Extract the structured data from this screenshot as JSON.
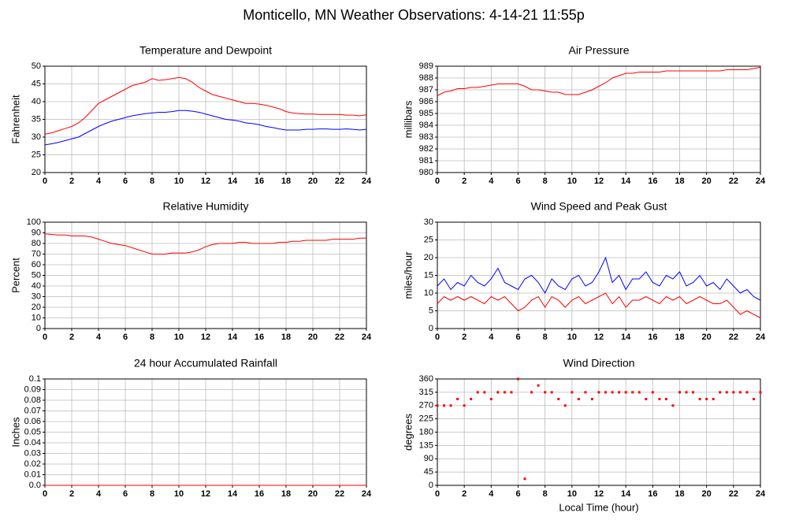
{
  "title": "Monticello, MN Weather Observations: 4-14-21 11:55p",
  "chart_data": [
    {
      "type": "line",
      "title": "Temperature and Dewpoint",
      "ylabel": "Fahrenheit",
      "x": [
        0,
        0.5,
        1,
        1.5,
        2,
        2.5,
        3,
        3.5,
        4,
        4.5,
        5,
        5.5,
        6,
        6.5,
        7,
        7.5,
        8,
        8.5,
        9,
        9.5,
        10,
        10.5,
        11,
        11.5,
        12,
        12.5,
        13,
        13.5,
        14,
        14.5,
        15,
        15.5,
        16,
        16.5,
        17,
        17.5,
        18,
        18.5,
        19,
        19.5,
        20,
        20.5,
        21,
        21.5,
        22,
        22.5,
        23,
        23.5,
        24
      ],
      "series": [
        {
          "color": "#ff0000",
          "values": [
            30.8,
            31.2,
            31.8,
            32.4,
            33,
            34,
            35.5,
            37.5,
            39.5,
            40.5,
            41.5,
            42.5,
            43.5,
            44.5,
            45,
            45.5,
            46.5,
            46,
            46.2,
            46.5,
            46.8,
            46.5,
            45.5,
            44,
            43,
            42,
            41.5,
            41,
            40.5,
            40,
            39.5,
            39.5,
            39.3,
            39,
            38.5,
            38,
            37.2,
            36.8,
            36.6,
            36.5,
            36.5,
            36.4,
            36.4,
            36.4,
            36.4,
            36.2,
            36.2,
            36,
            36.3
          ]
        },
        {
          "color": "#0000ff",
          "values": [
            27.8,
            28.1,
            28.5,
            29,
            29.5,
            30,
            31,
            32,
            33,
            33.8,
            34.5,
            35,
            35.5,
            36,
            36.3,
            36.6,
            36.8,
            37,
            37,
            37.2,
            37.5,
            37.5,
            37.3,
            37,
            36.5,
            36,
            35.5,
            35,
            34.8,
            34.5,
            34,
            33.8,
            33.5,
            33,
            32.7,
            32.3,
            32,
            32,
            32,
            32.2,
            32.2,
            32.3,
            32.3,
            32.2,
            32.2,
            32.3,
            32.2,
            32,
            32.2
          ]
        }
      ],
      "xlim": [
        0,
        24
      ],
      "xticks": [
        0,
        2,
        4,
        6,
        8,
        10,
        12,
        14,
        16,
        18,
        20,
        22,
        24
      ],
      "ylim": [
        20,
        50
      ],
      "yticks": [
        20,
        25,
        30,
        35,
        40,
        45,
        50
      ],
      "grid": true
    },
    {
      "type": "line",
      "title": "Air Pressure",
      "ylabel": "millibars",
      "x": [
        0,
        0.5,
        1,
        1.5,
        2,
        2.5,
        3,
        3.5,
        4,
        4.5,
        5,
        5.5,
        6,
        6.5,
        7,
        7.5,
        8,
        8.5,
        9,
        9.5,
        10,
        10.5,
        11,
        11.5,
        12,
        12.5,
        13,
        13.5,
        14,
        14.5,
        15,
        15.5,
        16,
        16.5,
        17,
        17.5,
        18,
        18.5,
        19,
        19.5,
        20,
        20.5,
        21,
        21.5,
        22,
        22.5,
        23,
        23.5,
        24
      ],
      "series": [
        {
          "color": "#ff0000",
          "values": [
            986.5,
            986.8,
            986.9,
            987.1,
            987.1,
            987.2,
            987.2,
            987.3,
            987.4,
            987.5,
            987.5,
            987.5,
            987.5,
            987.3,
            987.0,
            987.0,
            986.9,
            986.8,
            986.8,
            986.6,
            986.6,
            986.6,
            986.8,
            987.0,
            987.3,
            987.6,
            988.0,
            988.2,
            988.4,
            988.4,
            988.5,
            988.5,
            988.5,
            988.5,
            988.6,
            988.6,
            988.6,
            988.6,
            988.6,
            988.6,
            988.6,
            988.6,
            988.6,
            988.7,
            988.7,
            988.7,
            988.7,
            988.8,
            988.9
          ]
        }
      ],
      "xlim": [
        0,
        24
      ],
      "xticks": [
        0,
        2,
        4,
        6,
        8,
        10,
        12,
        14,
        16,
        18,
        20,
        22,
        24
      ],
      "ylim": [
        980,
        989
      ],
      "yticks": [
        980,
        981,
        982,
        983,
        984,
        985,
        986,
        987,
        988,
        989
      ],
      "grid": true
    },
    {
      "type": "line",
      "title": "Relative Humidity",
      "ylabel": "Percent",
      "x": [
        0,
        0.5,
        1,
        1.5,
        2,
        2.5,
        3,
        3.5,
        4,
        4.5,
        5,
        5.5,
        6,
        6.5,
        7,
        7.5,
        8,
        8.5,
        9,
        9.5,
        10,
        10.5,
        11,
        11.5,
        12,
        12.5,
        13,
        13.5,
        14,
        14.5,
        15,
        15.5,
        16,
        16.5,
        17,
        17.5,
        18,
        18.5,
        19,
        19.5,
        20,
        20.5,
        21,
        21.5,
        22,
        22.5,
        23,
        23.5,
        24
      ],
      "series": [
        {
          "color": "#ff0000",
          "values": [
            89,
            88.5,
            88,
            88,
            87,
            87,
            87,
            86,
            84,
            82,
            80,
            79,
            78,
            76,
            74,
            72,
            70,
            70,
            70,
            71,
            71,
            71,
            72,
            74,
            77,
            79,
            80,
            80,
            80,
            81,
            81,
            80,
            80,
            80,
            80,
            81,
            81,
            82,
            82,
            83,
            83,
            83,
            83,
            84,
            84,
            84,
            84,
            85,
            85
          ]
        }
      ],
      "xlim": [
        0,
        24
      ],
      "xticks": [
        0,
        2,
        4,
        6,
        8,
        10,
        12,
        14,
        16,
        18,
        20,
        22,
        24
      ],
      "ylim": [
        0,
        100
      ],
      "yticks": [
        0,
        10,
        20,
        30,
        40,
        50,
        60,
        70,
        80,
        90,
        100
      ],
      "grid": true
    },
    {
      "type": "line",
      "title": "Wind Speed and Peak Gust",
      "ylabel": "miles/hour",
      "x": [
        0,
        0.5,
        1,
        1.5,
        2,
        2.5,
        3,
        3.5,
        4,
        4.5,
        5,
        5.5,
        6,
        6.5,
        7,
        7.5,
        8,
        8.5,
        9,
        9.5,
        10,
        10.5,
        11,
        11.5,
        12,
        12.5,
        13,
        13.5,
        14,
        14.5,
        15,
        15.5,
        16,
        16.5,
        17,
        17.5,
        18,
        18.5,
        19,
        19.5,
        20,
        20.5,
        21,
        21.5,
        22,
        22.5,
        23,
        23.5,
        24
      ],
      "series": [
        {
          "color": "#ff0000",
          "values": [
            7,
            9,
            8,
            9,
            8,
            9,
            8,
            7,
            9,
            8,
            9,
            7,
            5,
            6,
            8,
            9,
            6,
            9,
            8,
            6,
            8,
            9,
            7,
            8,
            9,
            10,
            7,
            9,
            6,
            8,
            8,
            9,
            8,
            7,
            9,
            8,
            9,
            7,
            8,
            9,
            8,
            7,
            7,
            8,
            6,
            4,
            5,
            4,
            3
          ]
        },
        {
          "color": "#0000ff",
          "values": [
            12,
            14,
            11,
            13,
            12,
            15,
            13,
            12,
            14,
            17,
            13,
            12,
            11,
            14,
            15,
            13,
            10,
            14,
            12,
            11,
            14,
            15,
            12,
            13,
            16,
            20,
            13,
            15,
            11,
            14,
            14,
            16,
            13,
            12,
            15,
            14,
            16,
            12,
            13,
            15,
            12,
            13,
            11,
            14,
            12,
            10,
            11,
            9,
            8
          ]
        }
      ],
      "xlim": [
        0,
        24
      ],
      "xticks": [
        0,
        2,
        4,
        6,
        8,
        10,
        12,
        14,
        16,
        18,
        20,
        22,
        24
      ],
      "ylim": [
        0,
        30
      ],
      "yticks": [
        0,
        5,
        10,
        15,
        20,
        25,
        30
      ],
      "grid": true
    },
    {
      "type": "line",
      "title": "24 hour Accumulated Rainfall",
      "ylabel": "Inches",
      "x": [
        0,
        24
      ],
      "series": [
        {
          "color": "#ff0000",
          "values": [
            0,
            0
          ]
        }
      ],
      "xlim": [
        0,
        24
      ],
      "xticks": [
        0,
        2,
        4,
        6,
        8,
        10,
        12,
        14,
        16,
        18,
        20,
        22,
        24
      ],
      "ylim": [
        0,
        0.1
      ],
      "yticks": [
        {
          "value": 0,
          "label": "0.0"
        },
        0.01,
        0.02,
        0.03,
        0.04,
        0.05,
        0.06,
        0.07,
        0.08,
        0.09,
        0.1
      ],
      "grid": true
    },
    {
      "type": "scatter",
      "title": "Wind Direction",
      "ylabel": "degrees",
      "xlabel": "Local Time (hour)",
      "x": [
        0,
        0.5,
        1,
        1.5,
        2,
        2.5,
        3,
        3.5,
        4,
        4.5,
        5,
        5.5,
        6,
        6.5,
        7,
        7.5,
        8,
        8.5,
        9,
        9.5,
        10,
        10.5,
        11,
        11.5,
        12,
        12.5,
        13,
        13.5,
        14,
        14.5,
        15,
        15.5,
        16,
        16.5,
        17,
        17.5,
        18,
        18.5,
        19,
        19.5,
        20,
        20.5,
        21,
        21.5,
        22,
        22.5,
        23,
        23.5,
        24
      ],
      "series": [
        {
          "color": "#ff0000",
          "values": [
            270,
            270,
            270,
            292,
            270,
            292,
            315,
            315,
            292,
            315,
            315,
            315,
            360,
            22,
            315,
            338,
            315,
            315,
            292,
            270,
            315,
            292,
            315,
            292,
            315,
            315,
            315,
            315,
            315,
            315,
            315,
            292,
            315,
            292,
            292,
            270,
            315,
            315,
            315,
            292,
            292,
            292,
            315,
            315,
            315,
            315,
            315,
            292,
            315
          ]
        }
      ],
      "xlim": [
        0,
        24
      ],
      "xticks": [
        0,
        2,
        4,
        6,
        8,
        10,
        12,
        14,
        16,
        18,
        20,
        22,
        24
      ],
      "ylim": [
        0,
        360
      ],
      "yticks": [
        0,
        45,
        90,
        135,
        180,
        225,
        270,
        315,
        360
      ],
      "grid": true
    }
  ]
}
